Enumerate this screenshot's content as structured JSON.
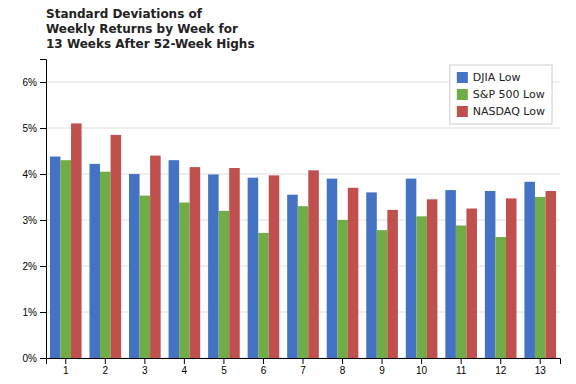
{
  "chart_data": {
    "type": "bar",
    "title": "Standard Deviations of\nWeekly Returns by Week for\n13 Weeks After 52-Week Highs",
    "categories": [
      "1",
      "2",
      "3",
      "4",
      "5",
      "6",
      "7",
      "8",
      "9",
      "10",
      "11",
      "12",
      "13"
    ],
    "series": [
      {
        "name": "DJIA Low",
        "color": "#4472C4",
        "values": [
          0.0438,
          0.0422,
          0.04,
          0.043,
          0.0399,
          0.0392,
          0.0355,
          0.039,
          0.036,
          0.039,
          0.0365,
          0.0363,
          0.0383
        ]
      },
      {
        "name": "S&P 500 Low",
        "color": "#70AD47",
        "values": [
          0.043,
          0.0405,
          0.0353,
          0.0338,
          0.032,
          0.0272,
          0.033,
          0.03,
          0.0278,
          0.0308,
          0.0288,
          0.0263,
          0.035
        ]
      },
      {
        "name": "NASDAQ Low",
        "color": "#C0504D",
        "values": [
          0.051,
          0.0485,
          0.044,
          0.0415,
          0.0413,
          0.0397,
          0.0408,
          0.037,
          0.0322,
          0.0345,
          0.0325,
          0.0347,
          0.0363
        ]
      }
    ],
    "ylim": [
      0,
      0.065
    ],
    "yticks": [
      {
        "value": 0,
        "label": "0%"
      },
      {
        "value": 0.01,
        "label": "1%"
      },
      {
        "value": 0.02,
        "label": "2%"
      },
      {
        "value": 0.03,
        "label": "3%"
      },
      {
        "value": 0.04,
        "label": "4%"
      },
      {
        "value": 0.05,
        "label": "5%"
      },
      {
        "value": 0.06,
        "label": "6%"
      }
    ],
    "grid": true,
    "legend": "upper right"
  }
}
